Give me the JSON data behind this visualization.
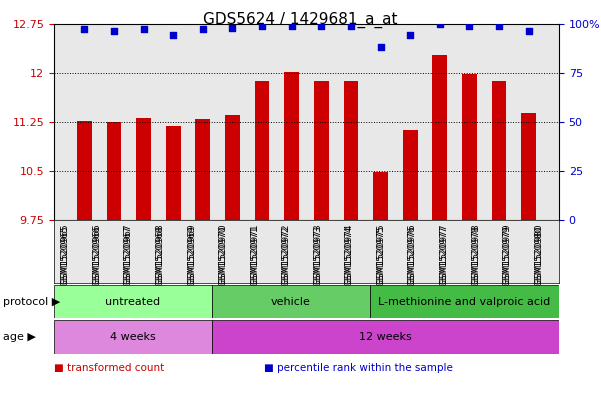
{
  "title": "GDS5624 / 1429681_a_at",
  "samples": [
    "GSM1520965",
    "GSM1520966",
    "GSM1520967",
    "GSM1520968",
    "GSM1520969",
    "GSM1520970",
    "GSM1520971",
    "GSM1520972",
    "GSM1520973",
    "GSM1520974",
    "GSM1520975",
    "GSM1520976",
    "GSM1520977",
    "GSM1520978",
    "GSM1520979",
    "GSM1520980"
  ],
  "bar_values": [
    11.27,
    11.24,
    11.31,
    11.18,
    11.29,
    11.35,
    11.88,
    12.01,
    11.88,
    11.87,
    10.48,
    11.13,
    12.27,
    11.98,
    11.87,
    11.38
  ],
  "dot_values": [
    97,
    96,
    97,
    94,
    97,
    98,
    99,
    99,
    99,
    99,
    88,
    94,
    100,
    99,
    99,
    96
  ],
  "ylim_left": [
    9.75,
    12.75
  ],
  "ylim_right": [
    0,
    100
  ],
  "yticks_left": [
    9.75,
    10.5,
    11.25,
    12.0,
    12.75
  ],
  "ytick_labels_left": [
    "9.75",
    "10.5",
    "11.25",
    "12",
    "12.75"
  ],
  "yticks_right": [
    0,
    25,
    50,
    75,
    100
  ],
  "ytick_labels_right": [
    "0",
    "25",
    "50",
    "75",
    "100%"
  ],
  "bar_color": "#cc0000",
  "dot_color": "#0000cc",
  "bar_bottom": 9.75,
  "protocol_groups": [
    {
      "label": "untreated",
      "start": 0,
      "end": 5,
      "color": "#99ff99"
    },
    {
      "label": "vehicle",
      "start": 5,
      "end": 10,
      "color": "#66cc66"
    },
    {
      "label": "L-methionine and valproic acid",
      "start": 10,
      "end": 16,
      "color": "#44bb44"
    }
  ],
  "age_groups": [
    {
      "label": "4 weeks",
      "start": 0,
      "end": 5,
      "color": "#dd88dd"
    },
    {
      "label": "12 weeks",
      "start": 5,
      "end": 16,
      "color": "#cc44cc"
    }
  ],
  "legend_items": [
    {
      "label": "transformed count",
      "color": "#cc0000"
    },
    {
      "label": "percentile rank within the sample",
      "color": "#0000cc"
    }
  ],
  "xlabel_protocol": "protocol",
  "xlabel_age": "age",
  "bg_color": "#ffffff",
  "plot_bg_color": "#e8e8e8",
  "grid_color": "#000000",
  "title_fontsize": 11,
  "tick_fontsize": 8,
  "label_fontsize": 9
}
